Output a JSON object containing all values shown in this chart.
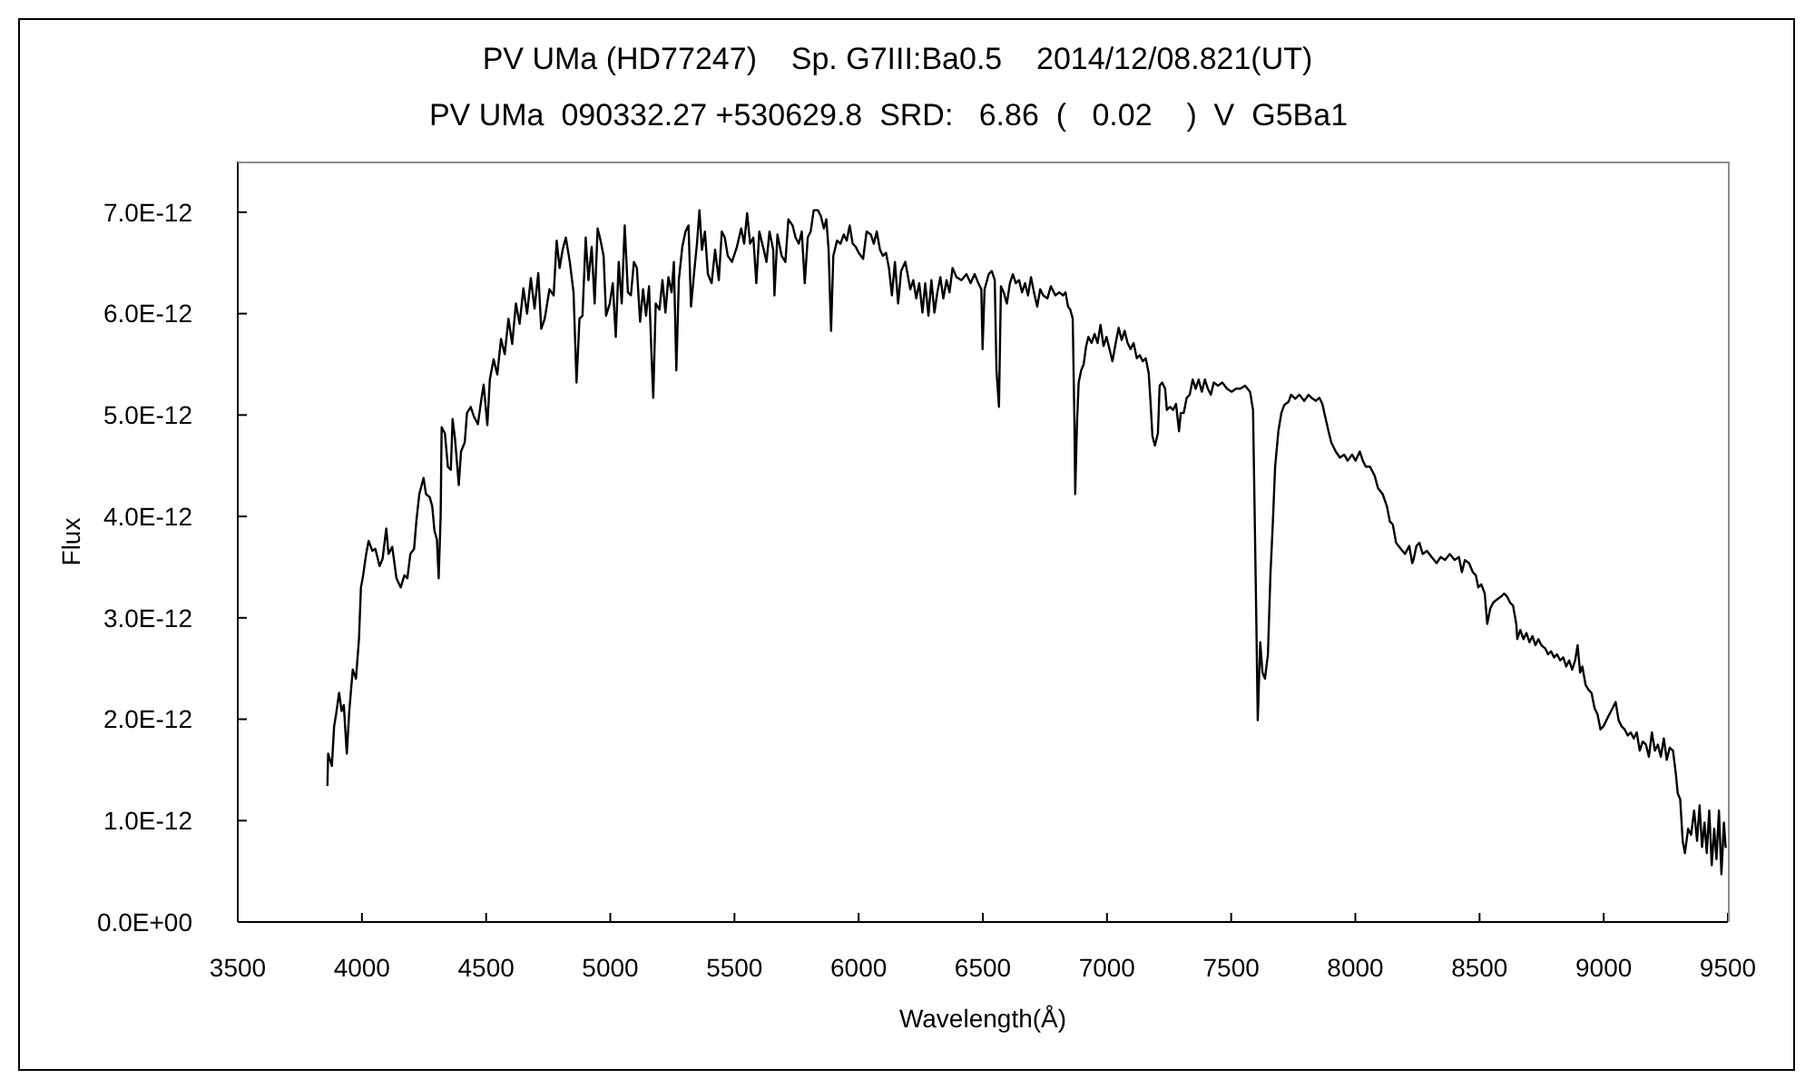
{
  "chart_data": {
    "type": "line",
    "title": "PV UMa (HD77247)    Sp. G7III:Ba0.5    2014/12/08.821(UT)",
    "subtitle": "PV UMa  090332.27 +530629.8  SRD:   6.86  (   0.02    )  V  G5Ba1",
    "xlabel": "Wavelength(Å)",
    "ylabel": "Flux",
    "x": [
      3861,
      3864,
      3879,
      3888,
      3896,
      3908,
      3918,
      3927,
      3939,
      3949,
      3963,
      3976,
      3988,
      3996,
      4005,
      4017,
      4027,
      4042,
      4054,
      4071,
      4083,
      4098,
      4107,
      4122,
      4139,
      4156,
      4171,
      4183,
      4195,
      4210,
      4219,
      4231,
      4248,
      4258,
      4273,
      4283,
      4292,
      4302,
      4309,
      4317,
      4321,
      4334,
      4346,
      4358,
      4365,
      4375,
      4390,
      4399,
      4414,
      4423,
      4438,
      4450,
      4467,
      4480,
      4490,
      4505,
      4515,
      4530,
      4545,
      4560,
      4575,
      4590,
      4605,
      4620,
      4635,
      4650,
      4665,
      4680,
      4695,
      4710,
      4722,
      4736,
      4755,
      4772,
      4784,
      4796,
      4808,
      4821,
      4837,
      4852,
      4864,
      4876,
      4888,
      4901,
      4912,
      4925,
      4937,
      4949,
      4961,
      4973,
      4983,
      4998,
      5010,
      5022,
      5034,
      5046,
      5058,
      5071,
      5083,
      5095,
      5107,
      5120,
      5132,
      5144,
      5156,
      5166,
      5173,
      5183,
      5198,
      5210,
      5222,
      5234,
      5247,
      5256,
      5266,
      5276,
      5290,
      5303,
      5315,
      5325,
      5337,
      5349,
      5359,
      5369,
      5381,
      5393,
      5408,
      5422,
      5437,
      5449,
      5461,
      5473,
      5490,
      5510,
      5527,
      5539,
      5551,
      5563,
      5576,
      5588,
      5600,
      5618,
      5629,
      5641,
      5656,
      5661,
      5673,
      5690,
      5705,
      5717,
      5734,
      5746,
      5759,
      5771,
      5783,
      5795,
      5807,
      5819,
      5836,
      5848,
      5860,
      5870,
      5879,
      5889,
      5898,
      5913,
      5927,
      5940,
      5952,
      5964,
      5976,
      5988,
      6000,
      6018,
      6032,
      6049,
      6061,
      6073,
      6086,
      6098,
      6110,
      6122,
      6134,
      6146,
      6159,
      6171,
      6188,
      6208,
      6220,
      6232,
      6244,
      6257,
      6268,
      6281,
      6293,
      6305,
      6317,
      6329,
      6341,
      6354,
      6366,
      6378,
      6394,
      6414,
      6434,
      6451,
      6467,
      6482,
      6494,
      6499,
      6507,
      6524,
      6536,
      6548,
      6555,
      6565,
      6573,
      6584,
      6597,
      6609,
      6621,
      6633,
      6646,
      6658,
      6670,
      6682,
      6694,
      6706,
      6719,
      6731,
      6743,
      6760,
      6774,
      6792,
      6808,
      6823,
      6833,
      6843,
      6852,
      6862,
      6869,
      6872,
      6879,
      6886,
      6896,
      6906,
      6916,
      6925,
      6938,
      6950,
      6962,
      6974,
      6986,
      6998,
      7010,
      7022,
      7035,
      7047,
      7059,
      7071,
      7083,
      7095,
      7107,
      7120,
      7132,
      7144,
      7156,
      7168,
      7175,
      7183,
      7193,
      7205,
      7212,
      7222,
      7234,
      7241,
      7254,
      7266,
      7278,
      7290,
      7297,
      7309,
      7321,
      7333,
      7345,
      7357,
      7369,
      7382,
      7394,
      7406,
      7418,
      7430,
      7447,
      7464,
      7483,
      7502,
      7520,
      7537,
      7556,
      7576,
      7588,
      7600,
      7607,
      7617,
      7626,
      7636,
      7648,
      7658,
      7668,
      7677,
      7690,
      7702,
      7714,
      7731,
      7741,
      7758,
      7775,
      7794,
      7812,
      7823,
      7841,
      7855,
      7867,
      7877,
      7892,
      7903,
      7921,
      7938,
      7955,
      7969,
      7987,
      8001,
      8018,
      8030,
      8042,
      8059,
      8078,
      8091,
      8110,
      8127,
      8139,
      8151,
      8164,
      8183,
      8200,
      8217,
      8229,
      8234,
      8246,
      8258,
      8271,
      8288,
      8307,
      8327,
      8344,
      8361,
      8380,
      8400,
      8417,
      8429,
      8441,
      8458,
      8473,
      8485,
      8495,
      8507,
      8521,
      8531,
      8543,
      8555,
      8570,
      8587,
      8599,
      8611,
      8623,
      8635,
      8648,
      8652,
      8664,
      8677,
      8689,
      8701,
      8713,
      8725,
      8737,
      8749,
      8764,
      8776,
      8788,
      8800,
      8812,
      8825,
      8837,
      8849,
      8861,
      8873,
      8885,
      8895,
      8905,
      8914,
      8927,
      8939,
      8951,
      8963,
      8975,
      8987,
      8999,
      9011,
      9023,
      9036,
      9048,
      9060,
      9072,
      9084,
      9097,
      9109,
      9121,
      9133,
      9145,
      9157,
      9170,
      9182,
      9194,
      9206,
      9218,
      9230,
      9242,
      9254,
      9266,
      9279,
      9291,
      9298,
      9308,
      9318,
      9327,
      9340,
      9352,
      9364,
      9376,
      9386,
      9396,
      9406,
      9415,
      9425,
      9435,
      9445,
      9454,
      9464,
      9474,
      9484,
      9491
    ],
    "series": [
      {
        "color": "#000000",
        "values": [
          1.35e-12,
          1.66e-12,
          1.54e-12,
          1.93e-12,
          2.05e-12,
          2.26e-12,
          2.08e-12,
          2.14e-12,
          1.66e-12,
          2.08e-12,
          2.49e-12,
          2.4e-12,
          2.79e-12,
          3.3e-12,
          3.42e-12,
          3.63e-12,
          3.76e-12,
          3.66e-12,
          3.68e-12,
          3.51e-12,
          3.58e-12,
          3.88e-12,
          3.63e-12,
          3.7e-12,
          3.39e-12,
          3.3e-12,
          3.42e-12,
          3.39e-12,
          3.63e-12,
          3.68e-12,
          3.95e-12,
          4.22e-12,
          4.38e-12,
          4.22e-12,
          4.19e-12,
          4.1e-12,
          3.86e-12,
          3.77e-12,
          3.39e-12,
          4.01e-12,
          4.88e-12,
          4.82e-12,
          4.49e-12,
          4.46e-12,
          4.96e-12,
          4.76e-12,
          4.31e-12,
          4.64e-12,
          4.73e-12,
          5.02e-12,
          5.08e-12,
          4.99e-12,
          4.91e-12,
          5.14e-12,
          5.3e-12,
          4.9e-12,
          5.35e-12,
          5.55e-12,
          5.4e-12,
          5.75e-12,
          5.6e-12,
          5.95e-12,
          5.7e-12,
          6.1e-12,
          5.9e-12,
          6.25e-12,
          6e-12,
          6.35e-12,
          6.05e-12,
          6.4e-12,
          5.85e-12,
          5.95e-12,
          6.24e-12,
          6.18e-12,
          6.72e-12,
          6.45e-12,
          6.63e-12,
          6.75e-12,
          6.51e-12,
          6.21e-12,
          5.32e-12,
          5.95e-12,
          5.98e-12,
          6.75e-12,
          6.33e-12,
          6.66e-12,
          6.1e-12,
          6.84e-12,
          6.72e-12,
          6.57e-12,
          5.98e-12,
          6.1e-12,
          6.3e-12,
          5.77e-12,
          6.51e-12,
          6.1e-12,
          6.87e-12,
          6.21e-12,
          6.18e-12,
          6.51e-12,
          6.45e-12,
          5.92e-12,
          6.24e-12,
          5.98e-12,
          6.27e-12,
          5.59e-12,
          5.17e-12,
          6.1e-12,
          6.04e-12,
          6.33e-12,
          6.01e-12,
          6.36e-12,
          6.21e-12,
          6.51e-12,
          5.44e-12,
          6.33e-12,
          6.66e-12,
          6.81e-12,
          6.87e-12,
          6.07e-12,
          6.39e-12,
          6.69e-12,
          7.02e-12,
          6.63e-12,
          6.81e-12,
          6.39e-12,
          6.3e-12,
          6.63e-12,
          6.33e-12,
          6.81e-12,
          6.75e-12,
          6.57e-12,
          6.51e-12,
          6.66e-12,
          6.84e-12,
          6.69e-12,
          6.99e-12,
          6.69e-12,
          6.75e-12,
          6.3e-12,
          6.81e-12,
          6.63e-12,
          6.51e-12,
          6.81e-12,
          6.63e-12,
          6.18e-12,
          6.78e-12,
          6.57e-12,
          6.51e-12,
          6.93e-12,
          6.87e-12,
          6.75e-12,
          6.69e-12,
          6.81e-12,
          6.3e-12,
          6.75e-12,
          6.81e-12,
          7.02e-12,
          7.02e-12,
          6.96e-12,
          6.84e-12,
          6.93e-12,
          6.63e-12,
          5.83e-12,
          6.57e-12,
          6.72e-12,
          6.69e-12,
          6.78e-12,
          6.72e-12,
          6.87e-12,
          6.69e-12,
          6.66e-12,
          6.6e-12,
          6.54e-12,
          6.81e-12,
          6.78e-12,
          6.69e-12,
          6.81e-12,
          6.63e-12,
          6.57e-12,
          6.6e-12,
          6.45e-12,
          6.18e-12,
          6.51e-12,
          6.1e-12,
          6.42e-12,
          6.51e-12,
          6.24e-12,
          6.33e-12,
          6.15e-12,
          6.3e-12,
          6.01e-12,
          6.3e-12,
          5.98e-12,
          6.33e-12,
          6.01e-12,
          6.21e-12,
          6.36e-12,
          6.15e-12,
          6.33e-12,
          6.21e-12,
          6.45e-12,
          6.36e-12,
          6.33e-12,
          6.39e-12,
          6.3e-12,
          6.39e-12,
          6.3e-12,
          6.24e-12,
          5.65e-12,
          6.24e-12,
          6.39e-12,
          6.42e-12,
          6.33e-12,
          5.44e-12,
          5.08e-12,
          6.27e-12,
          6.21e-12,
          6.1e-12,
          6.3e-12,
          6.39e-12,
          6.3e-12,
          6.33e-12,
          6.21e-12,
          6.3e-12,
          6.18e-12,
          6.36e-12,
          6.21e-12,
          6.07e-12,
          6.24e-12,
          6.18e-12,
          6.15e-12,
          6.27e-12,
          6.18e-12,
          6.21e-12,
          6.18e-12,
          6.21e-12,
          6.07e-12,
          6.04e-12,
          5.95e-12,
          4.91e-12,
          4.22e-12,
          4.91e-12,
          5.32e-12,
          5.44e-12,
          5.5e-12,
          5.68e-12,
          5.77e-12,
          5.71e-12,
          5.8e-12,
          5.71e-12,
          5.89e-12,
          5.68e-12,
          5.77e-12,
          5.65e-12,
          5.53e-12,
          5.71e-12,
          5.86e-12,
          5.74e-12,
          5.83e-12,
          5.71e-12,
          5.65e-12,
          5.71e-12,
          5.56e-12,
          5.59e-12,
          5.53e-12,
          5.56e-12,
          5.41e-12,
          5.14e-12,
          4.79e-12,
          4.7e-12,
          4.82e-12,
          5.29e-12,
          5.32e-12,
          5.26e-12,
          5.05e-12,
          5.08e-12,
          5.05e-12,
          5.11e-12,
          4.84e-12,
          5.02e-12,
          5.02e-12,
          5.17e-12,
          5.2e-12,
          5.35e-12,
          5.26e-12,
          5.35e-12,
          5.23e-12,
          5.35e-12,
          5.26e-12,
          5.2e-12,
          5.32e-12,
          5.29e-12,
          5.32e-12,
          5.26e-12,
          5.23e-12,
          5.26e-12,
          5.26e-12,
          5.29e-12,
          5.23e-12,
          5.05e-12,
          3.18e-12,
          1.99e-12,
          2.76e-12,
          2.46e-12,
          2.4e-12,
          2.64e-12,
          3.42e-12,
          3.95e-12,
          4.49e-12,
          4.84e-12,
          5.02e-12,
          5.1e-12,
          5.13e-12,
          5.2e-12,
          5.16e-12,
          5.2e-12,
          5.14e-12,
          5.2e-12,
          5.17e-12,
          5.14e-12,
          5.17e-12,
          5.11e-12,
          5e-12,
          4.84e-12,
          4.73e-12,
          4.64e-12,
          4.58e-12,
          4.61e-12,
          4.55e-12,
          4.61e-12,
          4.55e-12,
          4.64e-12,
          4.55e-12,
          4.49e-12,
          4.49e-12,
          4.4e-12,
          4.28e-12,
          4.22e-12,
          4.1e-12,
          3.95e-12,
          3.92e-12,
          3.74e-12,
          3.68e-12,
          3.63e-12,
          3.71e-12,
          3.54e-12,
          3.57e-12,
          3.71e-12,
          3.74e-12,
          3.63e-12,
          3.66e-12,
          3.6e-12,
          3.54e-12,
          3.6e-12,
          3.57e-12,
          3.63e-12,
          3.57e-12,
          3.6e-12,
          3.45e-12,
          3.57e-12,
          3.54e-12,
          3.45e-12,
          3.42e-12,
          3.3e-12,
          3.33e-12,
          3.24e-12,
          2.94e-12,
          3.09e-12,
          3.15e-12,
          3.18e-12,
          3.21e-12,
          3.24e-12,
          3.21e-12,
          3.15e-12,
          3.12e-12,
          2.94e-12,
          2.79e-12,
          2.88e-12,
          2.79e-12,
          2.85e-12,
          2.76e-12,
          2.82e-12,
          2.73e-12,
          2.79e-12,
          2.73e-12,
          2.7e-12,
          2.64e-12,
          2.67e-12,
          2.61e-12,
          2.64e-12,
          2.58e-12,
          2.61e-12,
          2.52e-12,
          2.58e-12,
          2.49e-12,
          2.58e-12,
          2.73e-12,
          2.46e-12,
          2.52e-12,
          2.34e-12,
          2.29e-12,
          2.26e-12,
          2.11e-12,
          2.05e-12,
          1.9e-12,
          1.93e-12,
          1.99e-12,
          2.05e-12,
          2.11e-12,
          2.17e-12,
          1.99e-12,
          1.93e-12,
          1.9e-12,
          1.84e-12,
          1.87e-12,
          1.81e-12,
          1.87e-12,
          1.69e-12,
          1.78e-12,
          1.75e-12,
          1.63e-12,
          1.87e-12,
          1.69e-12,
          1.75e-12,
          1.63e-12,
          1.81e-12,
          1.6e-12,
          1.72e-12,
          1.69e-12,
          1.45e-12,
          1.27e-12,
          1.21e-12,
          8e-13,
          6.8e-13,
          9.2e-13,
          8.6e-13,
          1.1e-12,
          8e-13,
          1.15e-12,
          7.4e-13,
          9.8e-13,
          6.8e-13,
          1.1e-12,
          5.6e-13,
          9.2e-13,
          6.2e-13,
          1.1e-12,
          4.7e-13,
          9.8e-13,
          7.4e-13
        ]
      }
    ],
    "xlim": [
      3500,
      9500
    ],
    "xticks": [
      3500,
      4000,
      4500,
      5000,
      5500,
      6000,
      6500,
      7000,
      7500,
      8000,
      8500,
      9000,
      9500
    ],
    "ylim": [
      0,
      7.5e-12
    ],
    "yticks": [
      {
        "value": 0,
        "label": "0.0E+00"
      },
      {
        "value": 1e-12,
        "label": "1.0E-12"
      },
      {
        "value": 2e-12,
        "label": "2.0E-12"
      },
      {
        "value": 3e-12,
        "label": "3.0E-12"
      },
      {
        "value": 4e-12,
        "label": "4.0E-12"
      },
      {
        "value": 5e-12,
        "label": "5.0E-12"
      },
      {
        "value": 6e-12,
        "label": "6.0E-12"
      },
      {
        "value": 7e-12,
        "label": "7.0E-12"
      }
    ],
    "line_style": "solid"
  }
}
